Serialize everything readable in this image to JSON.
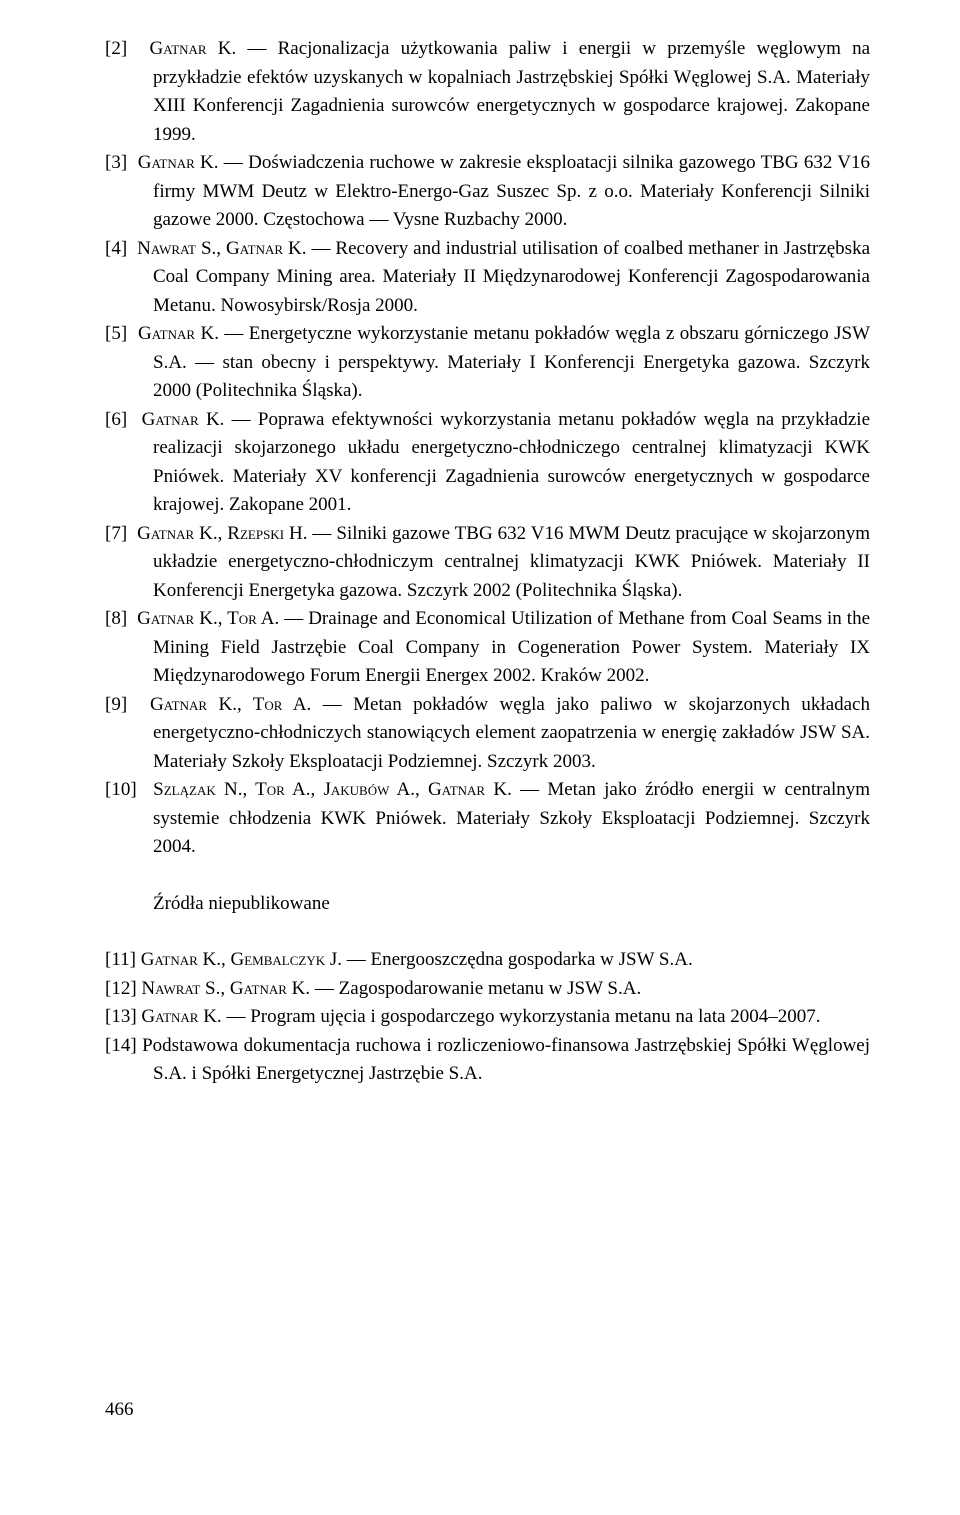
{
  "refs": [
    {
      "num": "[2]",
      "author": "Gatnar K.",
      "text": " — Racjonalizacja użytkowania paliw i energii w przemyśle węglowym na przykładzie efektów uzyskanych w kopalniach Jastrzębskiej Spółki Węglowej S.A. Materiały XIII Konferencji Zagadnienia surowców energetycznych w gospodarce krajowej. Zakopane 1999."
    },
    {
      "num": "[3]",
      "author": "Gatnar K.",
      "text": " — Doświadczenia ruchowe w zakresie eksploatacji silnika gazowego TBG 632 V16 firmy MWM Deutz w Elektro-Energo-Gaz Suszec Sp. z o.o. Materiały Konferencji Silniki gazowe 2000. Częstochowa — Vysne Ruzbachy 2000."
    },
    {
      "num": "[4]",
      "author": "Nawrat S., Gatnar K.",
      "text": " — Recovery and industrial utilisation of coalbed methaner in Jastrzębska Coal Company Mining area. Materiały II Międzynarodowej Konferencji Zagospodarowania Metanu. Nowosybirsk/Rosja 2000."
    },
    {
      "num": "[5]",
      "author": "Gatnar K.",
      "text": " — Energetyczne wykorzystanie metanu pokładów węgla z obszaru górniczego JSW S.A. — stan obecny i perspektywy. Materiały I Konferencji Energetyka gazowa. Szczyrk 2000 (Politechnika Śląska)."
    },
    {
      "num": "[6]",
      "author": "Gatnar K.",
      "text": " — Poprawa efektywności wykorzystania metanu pokładów węgla na przykładzie realizacji skojarzonego układu energetyczno-chłodniczego centralnej klimatyzacji KWK Pniówek. Materiały XV konferencji Zagadnienia surowców energetycznych w gospodarce krajowej. Zakopane 2001."
    },
    {
      "num": "[7]",
      "author": "Gatnar K., Rzepski H.",
      "text": " — Silniki gazowe TBG 632 V16 MWM Deutz pracujące w skojarzonym układzie energetyczno-chłodniczym centralnej klimatyzacji KWK Pniówek. Materiały II Konferencji Energetyka gazowa. Szczyrk 2002 (Politechnika Śląska)."
    },
    {
      "num": "[8]",
      "author": "Gatnar K., Tor A.",
      "text": " — Drainage and Economical Utilization of Methane from Coal Seams in the Mining Field Jastrzębie Coal Company in Cogeneration Power System. Materiały IX Międzynarodowego Forum Energii Energex 2002. Kraków 2002."
    },
    {
      "num": "[9]",
      "author": "Gatnar K., Tor A.",
      "text": " — Metan pokładów węgla jako paliwo w skojarzonych układach energetyczno-chłodniczych stanowiących element zaopatrzenia w energię zakładów JSW SA. Materiały Szkoły Eksploatacji Podziemnej. Szczyrk 2003."
    },
    {
      "num": "[10]",
      "author": "Szlązak N., Tor A., Jakubów A., Gatnar K.",
      "text": " — Metan jako źródło energii w centralnym systemie chłodzenia KWK Pniówek. Materiały Szkoły Eksploatacji Podziemnej. Szczyrk 2004."
    }
  ],
  "subheading": "Źródła niepublikowane",
  "refs2": [
    {
      "num": "[11]",
      "author": "Gatnar K., Gembalczyk J.",
      "text": " — Energooszczędna gospodarka w JSW S.A."
    },
    {
      "num": "[12]",
      "author": "Nawrat S., Gatnar K.",
      "text": " — Zagospodarowanie metanu w JSW S.A."
    },
    {
      "num": "[13]",
      "author": "Gatnar K.",
      "text": " — Program ujęcia i gospodarczego wykorzystania metanu na lata 2004–2007."
    },
    {
      "num": "[14]",
      "author": "",
      "text": "Podstawowa dokumentacja ruchowa i rozliczeniowo-finansowa Jastrzębskiej Spółki Węglowej S.A. i Spółki Energetycznej Jastrzębie S.A."
    }
  ],
  "page_number": "466"
}
